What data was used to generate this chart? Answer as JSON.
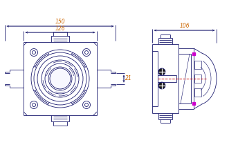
{
  "bg_color": "#ffffff",
  "line_color": "#1a1a6e",
  "dim_color": "#1a1a6e",
  "dim_text_color": "#cc6600",
  "red_dash_color": "#cc0000",
  "magenta_color": "#cc00cc",
  "screw_color": "#0a0a2a",
  "fig_width": 3.44,
  "fig_height": 2.29,
  "dpi": 100,
  "dim_150": "150",
  "dim_126": "126",
  "dim_106": "106",
  "dim_21": "21"
}
